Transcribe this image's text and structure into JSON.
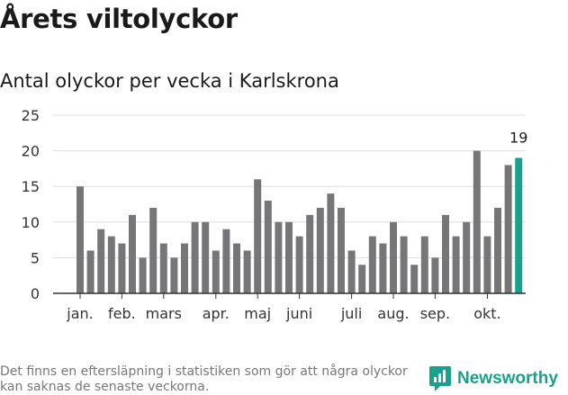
{
  "header": {
    "title": "Årets viltolyckor",
    "subtitle": "Antal olyckor per vecka i Karlskrona"
  },
  "footer": {
    "note": "Det finns en eftersläpning i statistiken som gör att några olyckor kan saknas de senaste veckorna.",
    "brand": "Newsworthy"
  },
  "colors": {
    "bar": "#767577",
    "highlight": "#1aa18b",
    "grid": "#dddddd",
    "axis": "#333333"
  },
  "chart_data": {
    "type": "bar",
    "values": [
      15,
      6,
      9,
      8,
      7,
      11,
      5,
      12,
      7,
      5,
      7,
      10,
      10,
      6,
      9,
      7,
      6,
      16,
      13,
      10,
      10,
      8,
      11,
      12,
      14,
      12,
      6,
      4,
      8,
      7,
      10,
      8,
      4,
      8,
      5,
      11,
      8,
      10,
      20,
      8,
      12,
      18,
      19
    ],
    "highlight_index": 42,
    "highlight_label": "19",
    "ylim": [
      0,
      25
    ],
    "yticks": [
      "0",
      "5",
      "10",
      "15",
      "20",
      "25"
    ],
    "ytick_values": [
      0,
      5,
      10,
      15,
      20,
      25
    ],
    "month_labels": [
      {
        "label": "jan.",
        "bar_index": 0
      },
      {
        "label": "feb.",
        "bar_index": 4
      },
      {
        "label": "mars",
        "bar_index": 8
      },
      {
        "label": "apr.",
        "bar_index": 13
      },
      {
        "label": "maj",
        "bar_index": 17
      },
      {
        "label": "juni",
        "bar_index": 21
      },
      {
        "label": "juli",
        "bar_index": 26
      },
      {
        "label": "aug.",
        "bar_index": 30
      },
      {
        "label": "sep.",
        "bar_index": 34
      },
      {
        "label": "okt.",
        "bar_index": 39
      }
    ],
    "grid": true
  }
}
